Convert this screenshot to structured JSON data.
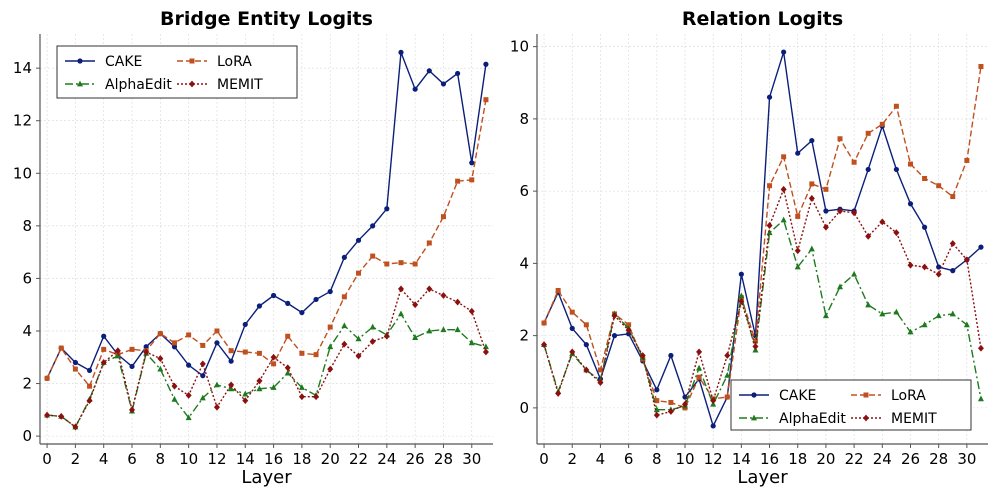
{
  "chart_data": [
    {
      "type": "line",
      "title": "Bridge Entity Logits",
      "xlabel": "Layer",
      "ylabel": "",
      "xlim": [
        -0.5,
        31.5
      ],
      "ylim": [
        -0.3,
        15.3
      ],
      "xticks": [
        0,
        2,
        4,
        6,
        8,
        10,
        12,
        14,
        16,
        18,
        20,
        22,
        24,
        26,
        28,
        30
      ],
      "yticks": [
        0,
        2,
        4,
        6,
        8,
        10,
        12,
        14
      ],
      "legend_location": "top-left",
      "x": [
        0,
        1,
        2,
        3,
        4,
        5,
        6,
        7,
        8,
        9,
        10,
        11,
        12,
        13,
        14,
        15,
        16,
        17,
        18,
        19,
        20,
        21,
        22,
        23,
        24,
        25,
        26,
        27,
        28,
        29,
        30,
        31
      ],
      "series": [
        {
          "name": "CAKE",
          "color": "#0b1f7a",
          "dash": "",
          "marker": "circle",
          "values": [
            2.2,
            3.35,
            2.8,
            2.5,
            3.8,
            3.1,
            2.65,
            3.4,
            3.9,
            3.4,
            2.7,
            2.3,
            3.55,
            2.85,
            4.25,
            4.95,
            5.35,
            5.05,
            4.7,
            5.2,
            5.5,
            6.8,
            7.45,
            8.0,
            8.65,
            14.6,
            13.2,
            13.9,
            13.4,
            13.8,
            10.4,
            14.15
          ]
        },
        {
          "name": "LoRA",
          "color": "#c0501e",
          "dash": "6,3",
          "marker": "square",
          "values": [
            2.2,
            3.35,
            2.55,
            1.9,
            3.3,
            3.1,
            3.3,
            3.25,
            3.9,
            3.55,
            3.85,
            3.45,
            4.0,
            3.25,
            3.2,
            3.15,
            2.75,
            3.8,
            3.15,
            3.1,
            4.15,
            5.3,
            6.2,
            6.85,
            6.55,
            6.6,
            6.55,
            7.35,
            8.35,
            9.7,
            9.75,
            12.8
          ]
        },
        {
          "name": "AlphaEdit",
          "color": "#1e7a1e",
          "dash": "8,3,2,3",
          "marker": "triangle",
          "values": [
            0.8,
            0.75,
            0.35,
            1.4,
            2.8,
            3.05,
            0.95,
            3.15,
            2.55,
            1.4,
            0.7,
            1.45,
            1.95,
            1.8,
            1.6,
            1.8,
            1.85,
            2.4,
            1.85,
            1.55,
            3.4,
            4.2,
            3.7,
            4.15,
            3.85,
            4.65,
            3.75,
            4.0,
            4.05,
            4.05,
            3.55,
            3.4
          ]
        },
        {
          "name": "MEMIT",
          "color": "#8b1010",
          "dash": "2,2",
          "marker": "diamond",
          "values": [
            0.8,
            0.75,
            0.35,
            1.35,
            2.8,
            3.25,
            1.0,
            3.2,
            2.95,
            1.9,
            1.55,
            2.75,
            1.1,
            1.95,
            1.35,
            2.1,
            3.0,
            2.6,
            1.5,
            1.5,
            2.55,
            3.5,
            3.05,
            3.6,
            3.8,
            5.6,
            5.0,
            5.6,
            5.35,
            5.1,
            4.75,
            3.2
          ]
        }
      ]
    },
    {
      "type": "line",
      "title": "Relation Logits",
      "xlabel": "Layer",
      "ylabel": "",
      "xlim": [
        -0.5,
        31.5
      ],
      "ylim": [
        -1.0,
        10.35
      ],
      "xticks": [
        0,
        2,
        4,
        6,
        8,
        10,
        12,
        14,
        16,
        18,
        20,
        22,
        24,
        26,
        28,
        30
      ],
      "yticks": [
        0,
        2,
        4,
        6,
        8,
        10
      ],
      "legend_location": "bottom-right",
      "x": [
        0,
        1,
        2,
        3,
        4,
        5,
        6,
        7,
        8,
        9,
        10,
        11,
        12,
        13,
        14,
        15,
        16,
        17,
        18,
        19,
        20,
        21,
        22,
        23,
        24,
        25,
        26,
        27,
        28,
        29,
        30,
        31
      ],
      "series": [
        {
          "name": "CAKE",
          "color": "#0b1f7a",
          "dash": "",
          "marker": "circle",
          "values": [
            2.35,
            3.2,
            2.2,
            1.75,
            0.8,
            2.0,
            2.05,
            1.3,
            0.5,
            1.45,
            0.3,
            0.8,
            -0.5,
            0.3,
            3.7,
            2.0,
            8.6,
            9.85,
            7.05,
            7.4,
            5.45,
            5.5,
            5.45,
            6.6,
            7.8,
            6.6,
            5.65,
            5.0,
            3.9,
            3.8,
            4.1,
            4.45
          ]
        },
        {
          "name": "LoRA",
          "color": "#c0501e",
          "dash": "6,3",
          "marker": "square",
          "values": [
            2.35,
            3.25,
            2.65,
            2.3,
            1.05,
            2.6,
            2.3,
            1.35,
            0.2,
            0.15,
            0.0,
            0.85,
            0.25,
            0.3,
            3.05,
            1.85,
            6.15,
            6.95,
            5.3,
            6.2,
            6.05,
            7.45,
            6.8,
            7.6,
            7.85,
            8.35,
            6.75,
            6.35,
            6.15,
            5.85,
            6.85,
            9.45
          ]
        },
        {
          "name": "AlphaEdit",
          "color": "#1e7a1e",
          "dash": "8,3,2,3",
          "marker": "triangle",
          "values": [
            1.75,
            0.45,
            1.5,
            1.05,
            0.75,
            2.6,
            2.2,
            1.4,
            -0.05,
            -0.05,
            0.05,
            1.1,
            0.1,
            0.9,
            3.1,
            1.6,
            4.85,
            5.2,
            3.9,
            4.4,
            2.55,
            3.35,
            3.7,
            2.85,
            2.6,
            2.65,
            2.1,
            2.3,
            2.55,
            2.6,
            2.3,
            0.25
          ]
        },
        {
          "name": "MEMIT",
          "color": "#8b1010",
          "dash": "2,2",
          "marker": "diamond",
          "values": [
            1.75,
            0.4,
            1.55,
            1.05,
            0.7,
            2.55,
            2.15,
            1.45,
            -0.2,
            -0.1,
            0.1,
            1.55,
            0.2,
            1.45,
            2.95,
            1.7,
            5.05,
            6.05,
            4.35,
            5.8,
            5.0,
            5.45,
            5.4,
            4.75,
            5.15,
            4.85,
            3.95,
            3.9,
            3.7,
            4.55,
            4.1,
            1.65
          ]
        }
      ]
    }
  ]
}
